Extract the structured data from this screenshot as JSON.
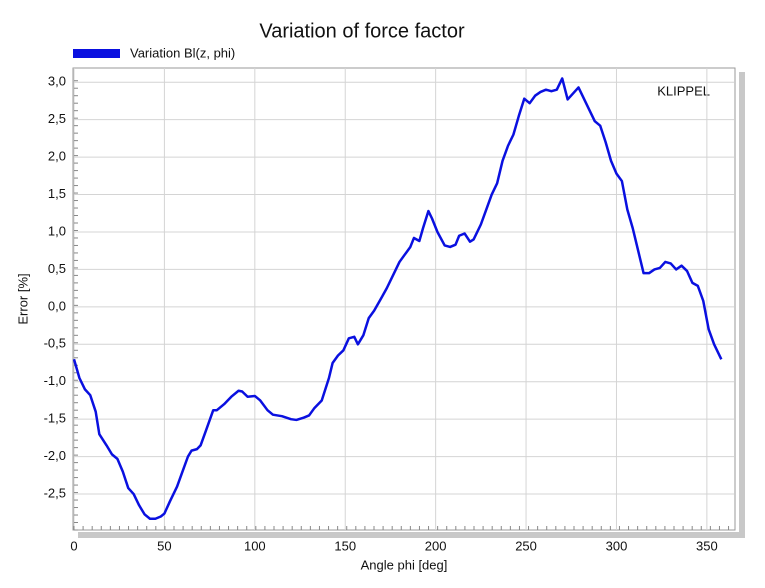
{
  "chart_data": {
    "type": "line",
    "title": "Variation of force factor",
    "x_label": "Angle phi [deg]",
    "y_label": "Error [%]",
    "annotation": "KLIPPEL",
    "x": [
      0,
      3,
      6,
      9,
      12,
      14,
      18,
      21,
      24,
      27,
      30,
      33,
      36,
      39,
      42,
      45,
      48,
      50,
      53,
      57,
      60,
      63,
      65,
      68,
      70,
      73,
      77,
      79,
      83,
      87,
      91,
      93,
      96,
      100,
      103,
      107,
      110,
      115,
      120,
      123,
      127,
      130,
      133,
      137,
      141,
      143,
      146,
      149,
      152,
      155,
      157,
      160,
      163,
      166,
      170,
      173,
      177,
      180,
      183,
      186,
      188,
      191,
      193,
      196,
      198,
      201,
      205,
      208,
      211,
      213,
      216,
      219,
      221,
      225,
      228,
      231,
      234,
      237,
      240,
      243,
      246,
      249,
      252,
      255,
      258,
      261,
      264,
      267,
      270,
      273,
      276,
      279,
      282,
      285,
      288,
      291,
      294,
      297,
      300,
      303,
      306,
      309,
      312,
      315,
      318,
      321,
      324,
      327,
      330,
      333,
      336,
      339,
      342,
      345,
      348,
      351,
      354,
      357,
      358
    ],
    "series": [
      {
        "name": "Variation Bl(z, phi)",
        "color": "#0a10e0",
        "values": [
          -0.7,
          -0.95,
          -1.1,
          -1.18,
          -1.4,
          -1.7,
          -1.85,
          -1.97,
          -2.03,
          -2.2,
          -2.42,
          -2.5,
          -2.65,
          -2.77,
          -2.83,
          -2.83,
          -2.8,
          -2.76,
          -2.6,
          -2.4,
          -2.2,
          -2.0,
          -1.92,
          -1.9,
          -1.85,
          -1.65,
          -1.38,
          -1.38,
          -1.3,
          -1.2,
          -1.12,
          -1.13,
          -1.2,
          -1.19,
          -1.25,
          -1.38,
          -1.44,
          -1.46,
          -1.5,
          -1.51,
          -1.48,
          -1.45,
          -1.35,
          -1.25,
          -0.95,
          -0.75,
          -0.65,
          -0.58,
          -0.42,
          -0.4,
          -0.5,
          -0.38,
          -0.15,
          -0.05,
          0.12,
          0.25,
          0.45,
          0.6,
          0.7,
          0.8,
          0.92,
          0.88,
          1.05,
          1.28,
          1.18,
          1.0,
          0.82,
          0.8,
          0.83,
          0.95,
          0.98,
          0.87,
          0.9,
          1.1,
          1.3,
          1.5,
          1.65,
          1.95,
          2.15,
          2.3,
          2.55,
          2.78,
          2.72,
          2.82,
          2.87,
          2.9,
          2.88,
          2.9,
          3.05,
          2.77,
          2.85,
          2.93,
          2.78,
          2.63,
          2.48,
          2.42,
          2.2,
          1.95,
          1.78,
          1.68,
          1.3,
          1.05,
          0.75,
          0.45,
          0.45,
          0.5,
          0.52,
          0.6,
          0.58,
          0.5,
          0.55,
          0.48,
          0.32,
          0.28,
          0.08,
          -0.3,
          -0.5,
          -0.65,
          -0.7
        ]
      }
    ],
    "xlim": [
      0,
      365
    ],
    "ylim": [
      -2.98,
      3.19
    ],
    "xticks": [
      0,
      50,
      100,
      150,
      200,
      250,
      300,
      350
    ],
    "yticks": [
      {
        "value": -2.5,
        "label": "-2,5"
      },
      {
        "value": -2,
        "label": "-2,0"
      },
      {
        "value": -1.5,
        "label": "-1,5"
      },
      {
        "value": -1,
        "label": "-1,0"
      },
      {
        "value": -0.5,
        "label": "-0,5"
      },
      {
        "value": 0,
        "label": "0,0"
      },
      {
        "value": 0.5,
        "label": "0,5"
      },
      {
        "value": 1,
        "label": "1,0"
      },
      {
        "value": 1.5,
        "label": "1,5"
      },
      {
        "value": 2,
        "label": "2,0"
      },
      {
        "value": 2.5,
        "label": "2,5"
      },
      {
        "value": 3,
        "label": "3,0"
      }
    ],
    "grid": true
  }
}
